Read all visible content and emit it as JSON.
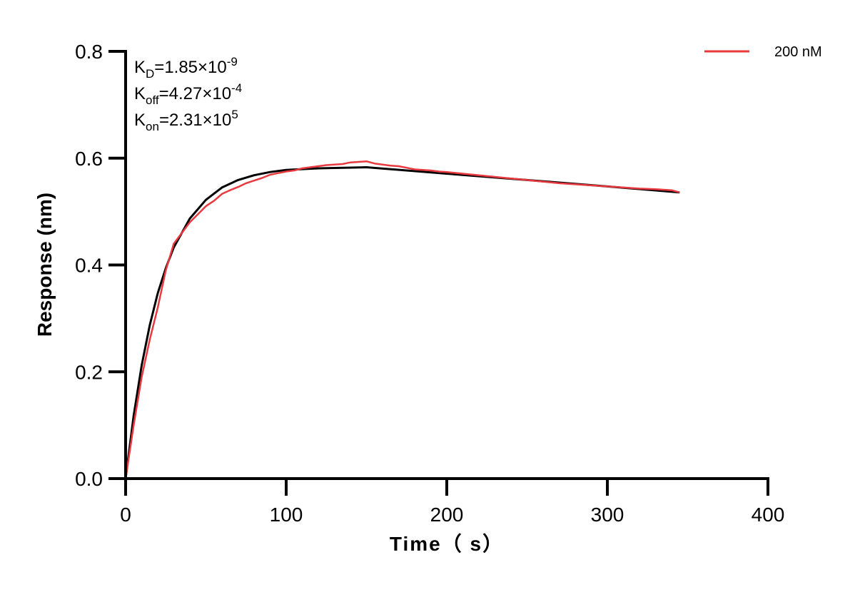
{
  "chart_data": {
    "type": "line",
    "xlabel": "Time（ s）",
    "ylabel": "Response (nm)",
    "xlim": [
      0,
      400
    ],
    "ylim": [
      0,
      0.8
    ],
    "xticks": [
      "0",
      "100",
      "200",
      "300",
      "400"
    ],
    "yticks": [
      "0.0",
      "0.2",
      "0.4",
      "0.6",
      "0.8"
    ],
    "grid": false,
    "legend_position": "top-right",
    "annotations": [
      {
        "main": "K",
        "sub": "D",
        "rest": "=1.85×10",
        "sup": "-9"
      },
      {
        "main": "K",
        "sub": "off",
        "rest": "=4.27×10",
        "sup": "-4"
      },
      {
        "main": "K",
        "sub": "on",
        "rest": "=2.31×10",
        "sup": "5"
      }
    ],
    "series": [
      {
        "name": "200 nM",
        "color": "#e8393f",
        "x": [
          0,
          5,
          10,
          15,
          20,
          25,
          30,
          35,
          40,
          45,
          50,
          55,
          60,
          65,
          70,
          75,
          80,
          85,
          90,
          95,
          100,
          105,
          110,
          115,
          120,
          125,
          130,
          135,
          140,
          145,
          150,
          155,
          160,
          165,
          170,
          175,
          180,
          185,
          190,
          195,
          200,
          210,
          220,
          230,
          240,
          250,
          260,
          270,
          280,
          290,
          300,
          310,
          320,
          330,
          340,
          345
        ],
        "y": [
          0,
          0.1,
          0.19,
          0.26,
          0.32,
          0.39,
          0.44,
          0.46,
          0.48,
          0.495,
          0.51,
          0.52,
          0.533,
          0.54,
          0.546,
          0.553,
          0.558,
          0.563,
          0.569,
          0.572,
          0.575,
          0.577,
          0.581,
          0.583,
          0.585,
          0.587,
          0.588,
          0.589,
          0.592,
          0.593,
          0.594,
          0.59,
          0.588,
          0.586,
          0.585,
          0.582,
          0.579,
          0.578,
          0.577,
          0.575,
          0.574,
          0.571,
          0.568,
          0.565,
          0.562,
          0.559,
          0.556,
          0.553,
          0.551,
          0.549,
          0.547,
          0.545,
          0.543,
          0.542,
          0.54,
          0.536
        ]
      },
      {
        "color": "#000000",
        "x": [
          0,
          5,
          10,
          15,
          20,
          25,
          30,
          40,
          50,
          60,
          70,
          80,
          90,
          100,
          120,
          150,
          175,
          200,
          250,
          300,
          345
        ],
        "y": [
          0,
          0.118,
          0.212,
          0.287,
          0.347,
          0.394,
          0.433,
          0.487,
          0.522,
          0.545,
          0.559,
          0.568,
          0.574,
          0.578,
          0.581,
          0.583,
          0.577,
          0.571,
          0.559,
          0.547,
          0.536
        ]
      }
    ]
  }
}
